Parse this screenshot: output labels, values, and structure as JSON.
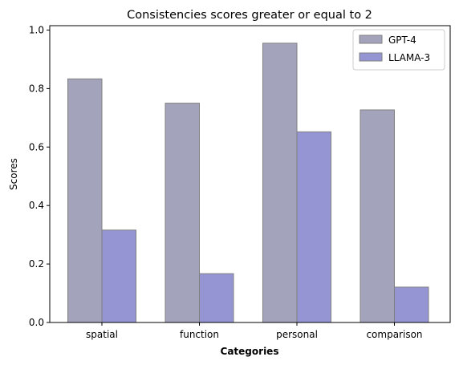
{
  "chart_data": {
    "type": "bar",
    "title": "Consistencies scores greater or equal to 2",
    "xlabel": "Categories",
    "ylabel": "Scores",
    "categories": [
      "spatial",
      "function",
      "personal",
      "comparison"
    ],
    "series": [
      {
        "name": "GPT-4",
        "values": [
          0.833,
          0.75,
          0.955,
          0.727
        ],
        "color": "#a3a3bb"
      },
      {
        "name": "LLAMA-3",
        "values": [
          0.316,
          0.167,
          0.652,
          0.121
        ],
        "color": "#9595d4"
      }
    ],
    "ylim": [
      0,
      1.0
    ],
    "yticks": [
      "0.0",
      "0.2",
      "0.4",
      "0.6",
      "0.8",
      "1.0"
    ],
    "ytick_values": [
      0,
      0.2,
      0.4,
      0.6,
      0.8,
      1.0
    ],
    "legend_position": "top-right",
    "grid": false,
    "edge_color": "#808080"
  }
}
